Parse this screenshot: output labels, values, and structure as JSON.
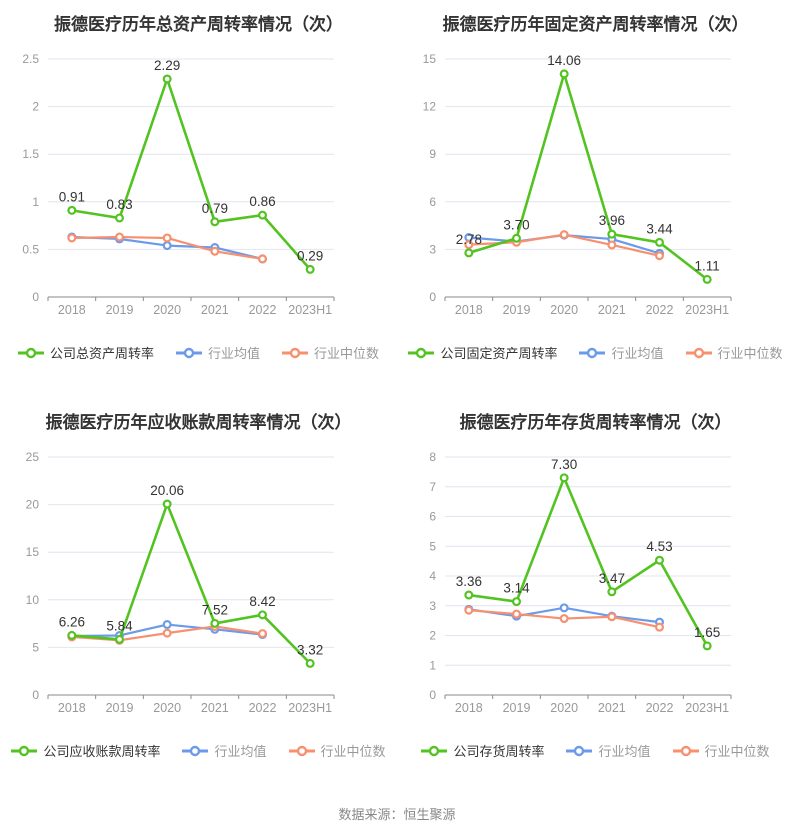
{
  "page": {
    "source": "数据来源：恒生聚源"
  },
  "colors": {
    "company_series": "#53C322",
    "industry_mean_series": "#6B9AEB",
    "industry_median_series": "#F6906F",
    "grid_line": "#E2E4F0",
    "axis_line": "#8A8A8A",
    "axis_label": "#999999",
    "data_label": "#333333",
    "title_text": "#333333",
    "source_text": "#888888"
  },
  "chart_data": [
    {
      "type": "line",
      "title": "振德医疗历年总资产周转率情况（次）",
      "categories": [
        "2018",
        "2019",
        "2020",
        "2021",
        "2022",
        "2023H1"
      ],
      "ylim": [
        0,
        2.5
      ],
      "ytick_values": [
        0,
        0.5,
        1,
        1.5,
        2,
        2.5
      ],
      "ytick_labels": [
        "0",
        "0.5",
        "1",
        "1.5",
        "2",
        "2.5"
      ],
      "grid": true,
      "legend_position": "bottom",
      "series": [
        {
          "name": "公司总资产周转率",
          "color": "company_series",
          "values": [
            0.91,
            0.83,
            2.29,
            0.79,
            0.86,
            0.29
          ],
          "labels": [
            "0.91",
            "0.83",
            "2.29",
            "0.79",
            "0.86",
            "0.29"
          ]
        },
        {
          "name": "行业均值",
          "color": "industry_mean_series",
          "values": [
            0.63,
            0.61,
            0.54,
            0.52,
            0.4,
            null
          ]
        },
        {
          "name": "行业中位数",
          "color": "industry_median_series",
          "values": [
            0.62,
            0.63,
            0.62,
            0.48,
            0.4,
            null
          ]
        }
      ]
    },
    {
      "type": "line",
      "title": "振德医疗历年固定资产周转率情况（次）",
      "categories": [
        "2018",
        "2019",
        "2020",
        "2021",
        "2022",
        "2023H1"
      ],
      "ylim": [
        0,
        15
      ],
      "ytick_values": [
        0,
        3,
        6,
        9,
        12,
        15
      ],
      "ytick_labels": [
        "0",
        "3",
        "6",
        "9",
        "12",
        "15"
      ],
      "grid": true,
      "legend_position": "bottom",
      "series": [
        {
          "name": "公司固定资产周转率",
          "color": "company_series",
          "values": [
            2.78,
            3.7,
            14.06,
            3.96,
            3.44,
            1.11
          ],
          "labels": [
            "2.78",
            "3.70",
            "14.06",
            "3.96",
            "3.44",
            "1.11"
          ]
        },
        {
          "name": "行业均值",
          "color": "industry_mean_series",
          "values": [
            3.75,
            3.5,
            3.9,
            3.65,
            2.75,
            null
          ]
        },
        {
          "name": "行业中位数",
          "color": "industry_median_series",
          "values": [
            3.3,
            3.45,
            3.93,
            3.28,
            2.6,
            null
          ]
        }
      ]
    },
    {
      "type": "line",
      "title": "振德医疗历年应收账款周转率情况（次）",
      "categories": [
        "2018",
        "2019",
        "2020",
        "2021",
        "2022",
        "2023H1"
      ],
      "ylim": [
        0,
        25
      ],
      "ytick_values": [
        0,
        5,
        10,
        15,
        20,
        25
      ],
      "ytick_labels": [
        "0",
        "5",
        "10",
        "15",
        "20",
        "25"
      ],
      "grid": true,
      "legend_position": "bottom",
      "series": [
        {
          "name": "公司应收账款周转率",
          "color": "company_series",
          "values": [
            6.26,
            5.84,
            20.06,
            7.52,
            8.42,
            3.32
          ],
          "labels": [
            "6.26",
            "5.84",
            "20.06",
            "7.52",
            "8.42",
            "3.32"
          ]
        },
        {
          "name": "行业均值",
          "color": "industry_mean_series",
          "values": [
            6.2,
            6.25,
            7.4,
            6.9,
            6.35,
            null
          ]
        },
        {
          "name": "行业中位数",
          "color": "industry_median_series",
          "values": [
            6.1,
            5.75,
            6.5,
            7.2,
            6.45,
            null
          ]
        }
      ]
    },
    {
      "type": "line",
      "title": "振德医疗历年存货周转率情况（次）",
      "categories": [
        "2018",
        "2019",
        "2020",
        "2021",
        "2022",
        "2023H1"
      ],
      "ylim": [
        0,
        8
      ],
      "ytick_values": [
        0,
        1,
        2,
        3,
        4,
        5,
        6,
        7,
        8
      ],
      "ytick_labels": [
        "0",
        "1",
        "2",
        "3",
        "4",
        "5",
        "6",
        "7",
        "8"
      ],
      "grid": true,
      "legend_position": "bottom",
      "series": [
        {
          "name": "公司存货周转率",
          "color": "company_series",
          "values": [
            3.36,
            3.14,
            7.3,
            3.47,
            4.53,
            1.65
          ],
          "labels": [
            "3.36",
            "3.14",
            "7.30",
            "3.47",
            "4.53",
            "1.65"
          ]
        },
        {
          "name": "行业均值",
          "color": "industry_mean_series",
          "values": [
            2.88,
            2.65,
            2.93,
            2.65,
            2.45,
            null
          ]
        },
        {
          "name": "行业中位数",
          "color": "industry_median_series",
          "values": [
            2.85,
            2.72,
            2.57,
            2.63,
            2.28,
            null
          ]
        }
      ]
    }
  ]
}
